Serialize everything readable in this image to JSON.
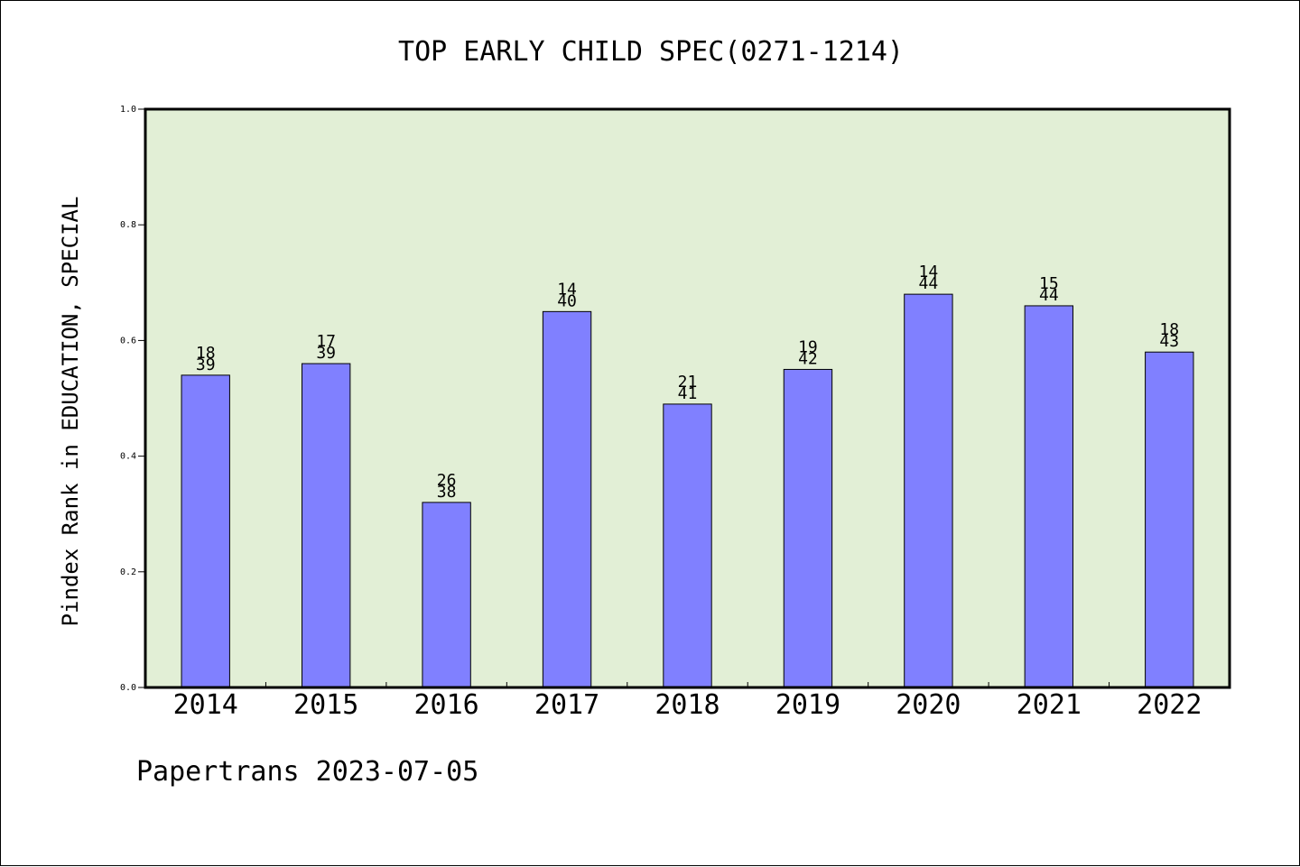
{
  "chart_data": {
    "type": "bar",
    "title": "TOP EARLY CHILD SPEC(0271-1214)",
    "ylabel": "Pindex Rank in EDUCATION, SPECIAL",
    "xlabel": "",
    "categories": [
      "2014",
      "2015",
      "2016",
      "2017",
      "2018",
      "2019",
      "2020",
      "2021",
      "2022"
    ],
    "values": [
      0.54,
      0.56,
      0.32,
      0.65,
      0.49,
      0.55,
      0.68,
      0.66,
      0.58
    ],
    "labels_top": [
      "18",
      "17",
      "26",
      "14",
      "21",
      "19",
      "14",
      "15",
      "18"
    ],
    "labels_bottom": [
      "39",
      "39",
      "38",
      "40",
      "41",
      "42",
      "44",
      "44",
      "43"
    ],
    "ylim": [
      0,
      1.0
    ],
    "yticks": [
      "0.0",
      "0.2",
      "0.4",
      "0.6",
      "0.8",
      "1.0"
    ],
    "grid": false,
    "legend": "none",
    "colors": {
      "bar": "#8080ff",
      "plot_background": "#e2efd6",
      "bar_edge": "#000000"
    }
  },
  "footer": {
    "text": "Papertrans 2023-07-05"
  }
}
